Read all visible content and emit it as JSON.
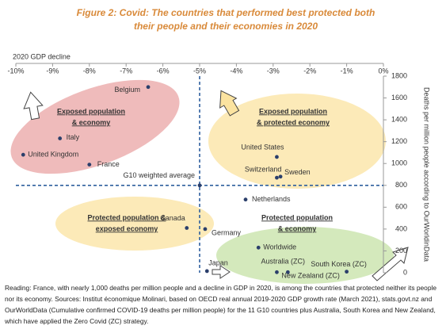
{
  "chart_data": {
    "type": "scatter",
    "title": "Figure 2: Covid: The countries that performed best protected both their people and their economies in 2020",
    "x_label": "2020 GDP decline",
    "y_label": "Deaths per million people according to OurWorldinData",
    "labels": [
      "Belgium",
      "Italy",
      "United Kingdom",
      "France",
      "United States",
      "Switzerland",
      "Sweden",
      "Netherlands",
      "Canada",
      "Germany",
      "Worldwide",
      "Japan",
      "Australia (ZC)",
      "New Zealand (ZC)",
      "South Korea (ZC)",
      "G10 weighted average"
    ],
    "x": [
      -6.4,
      -8.8,
      -9.8,
      -8.0,
      -2.9,
      -2.9,
      -2.8,
      -3.75,
      -5.35,
      -4.85,
      -3.4,
      -4.8,
      -2.9,
      -2.6,
      -1.0,
      -5.0
    ],
    "values": [
      1700,
      1230,
      1080,
      990,
      1060,
      870,
      880,
      670,
      410,
      400,
      230,
      15,
      5,
      5,
      10,
      800
    ],
    "color": "#2b3f6b",
    "reference_lines": {
      "x": -5.0,
      "y": 800
    },
    "quadrant_labels": [
      [
        "Exposed population",
        "& economy"
      ],
      [
        "Exposed population",
        "& protected economy"
      ],
      [
        "Protected population &",
        "exposed economy"
      ],
      [
        "Protected population",
        "& economy"
      ]
    ],
    "xlim": [
      -10,
      0
    ],
    "xticks": [
      {
        "value": -10,
        "label": "-10%"
      },
      {
        "value": -9,
        "label": "-9%"
      },
      {
        "value": -8,
        "label": "-8%"
      },
      {
        "value": -7,
        "label": "-7%"
      },
      {
        "value": -6,
        "label": "-6%"
      },
      {
        "value": -5,
        "label": "-5%"
      },
      {
        "value": -4,
        "label": "-4%"
      },
      {
        "value": -3,
        "label": "-3%"
      },
      {
        "value": -2,
        "label": "-2%"
      },
      {
        "value": -1,
        "label": "-1%"
      },
      {
        "value": 0,
        "label": "0%"
      }
    ],
    "ylim": [
      0,
      1800
    ],
    "yticks": [
      0,
      200,
      400,
      600,
      800,
      1000,
      1200,
      1400,
      1600,
      1800
    ],
    "note": "Reading: France, with nearly 1,000 deaths per million people and a decline in GDP in 2020, is among the countries that protected neither its people nor its economy. Sources: Institut économique Molinari, based on OECD real annual 2019-2020 GDP growth rate (March 2021), stats.govt.nz and OurWorldData (Cumulative confirmed COVID-19 deaths per million people) for the 11 G10 countries plus Australia, South Korea and New Zealand, which have applied the Zero Covid (ZC) strategy."
  }
}
